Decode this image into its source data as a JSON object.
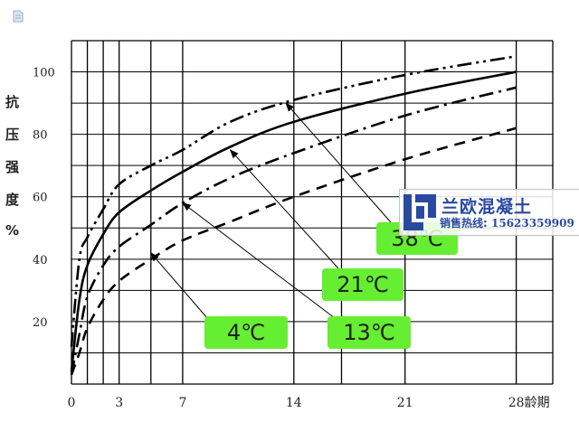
{
  "chart_data": {
    "type": "line",
    "title": "",
    "ylabel_chars": [
      "抗",
      "压",
      "强",
      "度",
      "%"
    ],
    "xlabel": "龄期",
    "x_ticks": [
      "0",
      "3",
      "7",
      "14",
      "21",
      "28"
    ],
    "y_ticks": [
      "20",
      "40",
      "60",
      "80",
      "100"
    ],
    "xlim": [
      0,
      30.3
    ],
    "ylim": [
      0,
      110
    ],
    "x_gridlines": [
      0,
      1,
      2,
      3,
      5,
      7,
      14,
      17,
      21,
      28,
      30.3
    ],
    "grid": true,
    "series": [
      {
        "name": "38℃",
        "style": "dash-dot-dot",
        "x": [
          0,
          0.5,
          1,
          2,
          3,
          5,
          7,
          10,
          14,
          21,
          28
        ],
        "y": [
          12,
          40,
          47,
          56,
          64,
          70,
          75,
          84,
          91,
          99,
          105
        ]
      },
      {
        "name": "21℃",
        "style": "solid",
        "x": [
          0,
          0.5,
          1,
          2,
          3,
          5,
          7,
          10,
          14,
          21,
          28
        ],
        "y": [
          4,
          27,
          38,
          48,
          55,
          62,
          68,
          76,
          84,
          93,
          100
        ]
      },
      {
        "name": "13℃",
        "style": "dash-dot",
        "x": [
          0,
          0.5,
          1,
          2,
          3,
          5,
          7,
          10,
          14,
          21,
          28
        ],
        "y": [
          3,
          16,
          28,
          38,
          44,
          51,
          58,
          66,
          74,
          86,
          95
        ]
      },
      {
        "name": "4℃",
        "style": "dashed",
        "x": [
          0,
          0.5,
          1,
          2,
          3,
          5,
          7,
          10,
          14,
          21,
          28
        ],
        "y": [
          3,
          10,
          18,
          27,
          33,
          40,
          46,
          52,
          60,
          72,
          82
        ]
      }
    ],
    "annotations": [
      {
        "label": "38℃",
        "target": [
          13.5,
          90
        ]
      },
      {
        "label": "21℃",
        "target": [
          10,
          75
        ]
      },
      {
        "label": "13℃",
        "target": [
          7,
          58
        ]
      },
      {
        "label": "4℃",
        "target": [
          5,
          42
        ]
      }
    ]
  },
  "watermark": {
    "company": "兰欧混凝土",
    "hotline_label": "销售热线:",
    "hotline_number": "15623359909"
  }
}
